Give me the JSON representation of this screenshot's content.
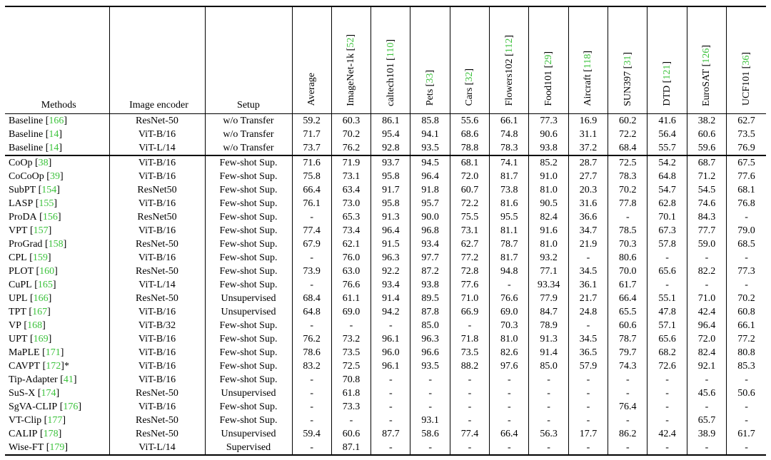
{
  "colors": {
    "citation": "#3cc23c",
    "rule": "#000000",
    "background": "#ffffff"
  },
  "table": {
    "fixed_headers": [
      "Methods",
      "Image encoder",
      "Setup"
    ],
    "dataset_headers": [
      {
        "name": "Average",
        "cite": ""
      },
      {
        "name": "ImageNet-1k",
        "cite": "52"
      },
      {
        "name": "caltech101",
        "cite": "110"
      },
      {
        "name": "Pets",
        "cite": "33"
      },
      {
        "name": "Cars",
        "cite": "32"
      },
      {
        "name": "Flowers102",
        "cite": "112"
      },
      {
        "name": "Food101",
        "cite": "29"
      },
      {
        "name": "Aircraft",
        "cite": "118"
      },
      {
        "name": "SUN397",
        "cite": "31"
      },
      {
        "name": "DTD",
        "cite": "121"
      },
      {
        "name": "EuroSAT",
        "cite": "126"
      },
      {
        "name": "UCF101",
        "cite": "36"
      }
    ],
    "groups": [
      {
        "rows": [
          {
            "method": "Baseline",
            "cite": "166",
            "suffix": "",
            "encoder": "ResNet-50",
            "setup": "w/o Transfer",
            "vals": [
              "59.2",
              "60.3",
              "86.1",
              "85.8",
              "55.6",
              "66.1",
              "77.3",
              "16.9",
              "60.2",
              "41.6",
              "38.2",
              "62.7"
            ]
          },
          {
            "method": "Baseline",
            "cite": "14",
            "suffix": "",
            "encoder": "ViT-B/16",
            "setup": "w/o Transfer",
            "vals": [
              "71.7",
              "70.2",
              "95.4",
              "94.1",
              "68.6",
              "74.8",
              "90.6",
              "31.1",
              "72.2",
              "56.4",
              "60.6",
              "73.5"
            ]
          },
          {
            "method": "Baseline",
            "cite": "14",
            "suffix": "",
            "encoder": "ViT-L/14",
            "setup": "w/o Transfer",
            "vals": [
              "73.7",
              "76.2",
              "92.8",
              "93.5",
              "78.8",
              "78.3",
              "93.8",
              "37.2",
              "68.4",
              "55.7",
              "59.6",
              "76.9"
            ]
          }
        ]
      },
      {
        "rows": [
          {
            "method": "CoOp",
            "cite": "38",
            "suffix": "",
            "encoder": "ViT-B/16",
            "setup": "Few-shot Sup.",
            "vals": [
              "71.6",
              "71.9",
              "93.7",
              "94.5",
              "68.1",
              "74.1",
              "85.2",
              "28.7",
              "72.5",
              "54.2",
              "68.7",
              "67.5"
            ]
          },
          {
            "method": "CoCoOp",
            "cite": "39",
            "suffix": "",
            "encoder": "ViT-B/16",
            "setup": "Few-shot Sup.",
            "vals": [
              "75.8",
              "73.1",
              "95.8",
              "96.4",
              "72.0",
              "81.7",
              "91.0",
              "27.7",
              "78.3",
              "64.8",
              "71.2",
              "77.6"
            ]
          },
          {
            "method": "SubPT",
            "cite": "154",
            "suffix": "",
            "encoder": "ResNet50",
            "setup": "Few-shot Sup.",
            "vals": [
              "66.4",
              "63.4",
              "91.7",
              "91.8",
              "60.7",
              "73.8",
              "81.0",
              "20.3",
              "70.2",
              "54.7",
              "54.5",
              "68.1"
            ]
          },
          {
            "method": "LASP",
            "cite": "155",
            "suffix": "",
            "encoder": "ViT-B/16",
            "setup": "Few-shot Sup.",
            "vals": [
              "76.1",
              "73.0",
              "95.8",
              "95.7",
              "72.2",
              "81.6",
              "90.5",
              "31.6",
              "77.8",
              "62.8",
              "74.6",
              "76.8"
            ]
          },
          {
            "method": "ProDA",
            "cite": "156",
            "suffix": "",
            "encoder": "ResNet50",
            "setup": "Few-shot Sup.",
            "vals": [
              "-",
              "65.3",
              "91.3",
              "90.0",
              "75.5",
              "95.5",
              "82.4",
              "36.6",
              "-",
              "70.1",
              "84.3",
              "-"
            ]
          },
          {
            "method": "VPT",
            "cite": "157",
            "suffix": "",
            "encoder": "ViT-B/16",
            "setup": "Few-shot Sup.",
            "vals": [
              "77.4",
              "73.4",
              "96.4",
              "96.8",
              "73.1",
              "81.1",
              "91.6",
              "34.7",
              "78.5",
              "67.3",
              "77.7",
              "79.0"
            ]
          },
          {
            "method": "ProGrad",
            "cite": "158",
            "suffix": "",
            "encoder": "ResNet-50",
            "setup": "Few-shot Sup.",
            "vals": [
              "67.9",
              "62.1",
              "91.5",
              "93.4",
              "62.7",
              "78.7",
              "81.0",
              "21.9",
              "70.3",
              "57.8",
              "59.0",
              "68.5"
            ]
          },
          {
            "method": "CPL",
            "cite": "159",
            "suffix": "",
            "encoder": "ViT-B/16",
            "setup": "Few-shot Sup.",
            "vals": [
              "-",
              "76.0",
              "96.3",
              "97.7",
              "77.2",
              "81.7",
              "93.2",
              "-",
              "80.6",
              "-",
              "-",
              "-"
            ]
          },
          {
            "method": "PLOT",
            "cite": "160",
            "suffix": "",
            "encoder": "ResNet-50",
            "setup": "Few-shot Sup.",
            "vals": [
              "73.9",
              "63.0",
              "92.2",
              "87.2",
              "72.8",
              "94.8",
              "77.1",
              "34.5",
              "70.0",
              "65.6",
              "82.2",
              "77.3"
            ]
          },
          {
            "method": "CuPL",
            "cite": "165",
            "suffix": "",
            "encoder": "ViT-L/14",
            "setup": "Few-shot Sup.",
            "vals": [
              "-",
              "76.6",
              "93.4",
              "93.8",
              "77.6",
              "-",
              "93.34",
              "36.1",
              "61.7",
              "-",
              "-",
              "-"
            ]
          },
          {
            "method": "UPL",
            "cite": "166",
            "suffix": "",
            "encoder": "ResNet-50",
            "setup": "Unsupervised",
            "vals": [
              "68.4",
              "61.1",
              "91.4",
              "89.5",
              "71.0",
              "76.6",
              "77.9",
              "21.7",
              "66.4",
              "55.1",
              "71.0",
              "70.2"
            ]
          },
          {
            "method": "TPT",
            "cite": "167",
            "suffix": "",
            "encoder": "ViT-B/16",
            "setup": "Unsupervised",
            "vals": [
              "64.8",
              "69.0",
              "94.2",
              "87.8",
              "66.9",
              "69.0",
              "84.7",
              "24.8",
              "65.5",
              "47.8",
              "42.4",
              "60.8"
            ]
          },
          {
            "method": "VP",
            "cite": "168",
            "suffix": "",
            "encoder": "ViT-B/32",
            "setup": "Few-shot Sup.",
            "vals": [
              "-",
              "-",
              "-",
              "85.0",
              "-",
              "70.3",
              "78.9",
              "-",
              "60.6",
              "57.1",
              "96.4",
              "66.1"
            ]
          },
          {
            "method": "UPT",
            "cite": "169",
            "suffix": "",
            "encoder": "ViT-B/16",
            "setup": "Few-shot Sup.",
            "vals": [
              "76.2",
              "73.2",
              "96.1",
              "96.3",
              "71.8",
              "81.0",
              "91.3",
              "34.5",
              "78.7",
              "65.6",
              "72.0",
              "77.2"
            ]
          },
          {
            "method": "MaPLE",
            "cite": "171",
            "suffix": "",
            "encoder": "ViT-B/16",
            "setup": "Few-shot Sup.",
            "vals": [
              "78.6",
              "73.5",
              "96.0",
              "96.6",
              "73.5",
              "82.6",
              "91.4",
              "36.5",
              "79.7",
              "68.2",
              "82.4",
              "80.8"
            ]
          },
          {
            "method": "CAVPT",
            "cite": "172",
            "suffix": "*",
            "encoder": "ViT-B/16",
            "setup": "Few-shot Sup.",
            "vals": [
              "83.2",
              "72.5",
              "96.1",
              "93.5",
              "88.2",
              "97.6",
              "85.0",
              "57.9",
              "74.3",
              "72.6",
              "92.1",
              "85.3"
            ]
          },
          {
            "method": "Tip-Adapter",
            "cite": "41",
            "suffix": "",
            "encoder": "ViT-B/16",
            "setup": "Few-shot Sup.",
            "vals": [
              "-",
              "70.8",
              "-",
              "-",
              "-",
              "-",
              "-",
              "-",
              "-",
              "-",
              "-",
              "-"
            ]
          },
          {
            "method": "SuS-X",
            "cite": "174",
            "suffix": "",
            "encoder": "ResNet-50",
            "setup": "Unsupervised",
            "vals": [
              "-",
              "61.8",
              "-",
              "-",
              "-",
              "-",
              "-",
              "-",
              "-",
              "-",
              "45.6",
              "50.6"
            ]
          },
          {
            "method": "SgVA-CLIP",
            "cite": "176",
            "suffix": "",
            "encoder": "ViT-B/16",
            "setup": "Few-shot Sup.",
            "vals": [
              "-",
              "73.3",
              "-",
              "-",
              "-",
              "-",
              "-",
              "-",
              "76.4",
              "-",
              "-",
              "-"
            ]
          },
          {
            "method": "VT-Clip",
            "cite": "177",
            "suffix": "",
            "encoder": "ResNet-50",
            "setup": "Few-shot Sup.",
            "vals": [
              "-",
              "-",
              "-",
              "93.1",
              "-",
              "-",
              "-",
              "-",
              "-",
              "-",
              "65.7",
              "-"
            ]
          },
          {
            "method": "CALIP",
            "cite": "178",
            "suffix": "",
            "encoder": "ResNet-50",
            "setup": "Unsupervised",
            "vals": [
              "59.4",
              "60.6",
              "87.7",
              "58.6",
              "77.4",
              "66.4",
              "56.3",
              "17.7",
              "86.2",
              "42.4",
              "38.9",
              "61.7"
            ]
          },
          {
            "method": "Wise-FT",
            "cite": "179",
            "suffix": "",
            "encoder": "ViT-L/14",
            "setup": "Supervised",
            "vals": [
              "-",
              "87.1",
              "-",
              "-",
              "-",
              "-",
              "-",
              "-",
              "-",
              "-",
              "-",
              "-"
            ]
          }
        ]
      }
    ]
  }
}
